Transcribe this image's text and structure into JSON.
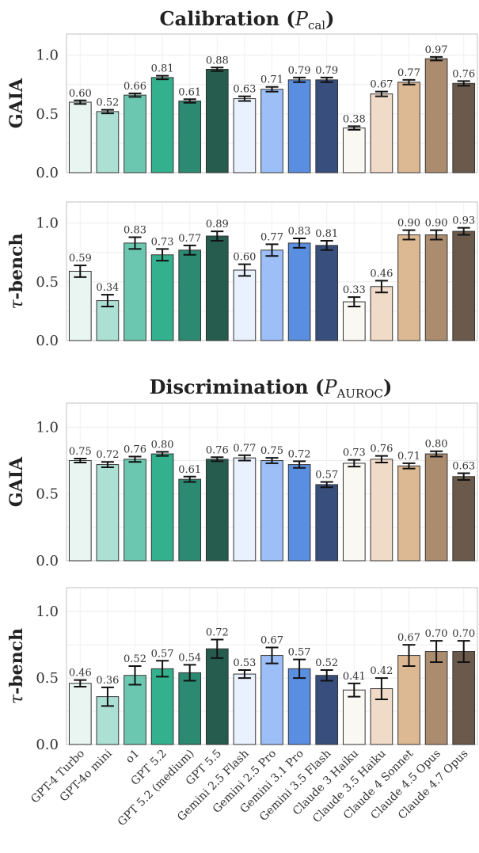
{
  "titles": {
    "calibration": {
      "main": "Calibration (",
      "sym": "P",
      "sub": "cal",
      "close": ")"
    },
    "discrimination": {
      "main": "Discrimination (",
      "sym": "P",
      "sub": "AUROC",
      "close": ")"
    }
  },
  "models": [
    "GPT-4 Turbo",
    "GPT-4o mini",
    "o1",
    "GPT 5.2",
    "GPT 5.2 (medium)",
    "GPT 5.5",
    "Gemini 2.5 Flash",
    "Gemini 2.5 Pro",
    "Gemini 3.1 Pro",
    "Gemini 3.5 Flash",
    "Claude 3 Haiku",
    "Claude 3.5 Haiku",
    "Claude 4 Sonnet",
    "Claude 4.5 Opus",
    "Claude 4.7 Opus"
  ],
  "colors": [
    "#e8f5f0",
    "#ace0d3",
    "#6cc7b1",
    "#33b08e",
    "#2c8a72",
    "#265c4e",
    "#e8f1fd",
    "#9dbff8",
    "#5a8ee0",
    "#384e7d",
    "#faf8f3",
    "#f0dac8",
    "#dcb893",
    "#ac8c6f",
    "#6b5a4b"
  ],
  "chart_data": [
    {
      "type": "bar",
      "section": "Calibration",
      "ylabel": "GAIA",
      "ylim": [
        0,
        1.18
      ],
      "yticks": [
        "0.0",
        "0.5",
        "1.0"
      ],
      "grid": true,
      "values": [
        0.6,
        0.52,
        0.66,
        0.81,
        0.61,
        0.88,
        0.63,
        0.71,
        0.79,
        0.79,
        0.38,
        0.67,
        0.77,
        0.97,
        0.76
      ],
      "labels": [
        "0.60",
        "0.52",
        "0.66",
        "0.81",
        "0.61",
        "0.88",
        "0.63",
        "0.71",
        "0.79",
        "0.79",
        "0.38",
        "0.67",
        "0.77",
        "0.97",
        "0.76"
      ],
      "errors": [
        0.015,
        0.015,
        0.015,
        0.015,
        0.015,
        0.015,
        0.02,
        0.02,
        0.02,
        0.02,
        0.015,
        0.02,
        0.02,
        0.015,
        0.02
      ]
    },
    {
      "type": "bar",
      "section": "Calibration",
      "ylabel": "τ-bench",
      "ylim": [
        0,
        1.18
      ],
      "yticks": [
        "0.0",
        "0.5",
        "1.0"
      ],
      "grid": true,
      "values": [
        0.59,
        0.34,
        0.83,
        0.73,
        0.77,
        0.89,
        0.6,
        0.77,
        0.83,
        0.81,
        0.33,
        0.46,
        0.9,
        0.9,
        0.93
      ],
      "labels": [
        "0.59",
        "0.34",
        "0.83",
        "0.73",
        "0.77",
        "0.89",
        "0.60",
        "0.77",
        "0.83",
        "0.81",
        "0.33",
        "0.46",
        "0.90",
        "0.90",
        "0.93"
      ],
      "errors": [
        0.05,
        0.05,
        0.05,
        0.05,
        0.04,
        0.04,
        0.05,
        0.05,
        0.04,
        0.04,
        0.04,
        0.05,
        0.04,
        0.04,
        0.03
      ]
    },
    {
      "type": "bar",
      "section": "Discrimination",
      "ylabel": "GAIA",
      "ylim": [
        0,
        1.18
      ],
      "yticks": [
        "0.0",
        "0.5",
        "1.0"
      ],
      "grid": true,
      "values": [
        0.75,
        0.72,
        0.76,
        0.8,
        0.61,
        0.76,
        0.77,
        0.75,
        0.72,
        0.57,
        0.73,
        0.76,
        0.71,
        0.8,
        0.63
      ],
      "labels": [
        "0.75",
        "0.72",
        "0.76",
        "0.80",
        "0.61",
        "0.76",
        "0.77",
        "0.75",
        "0.72",
        "0.57",
        "0.73",
        "0.76",
        "0.71",
        "0.80",
        "0.63"
      ],
      "errors": [
        0.015,
        0.02,
        0.02,
        0.015,
        0.02,
        0.015,
        0.02,
        0.02,
        0.025,
        0.02,
        0.025,
        0.025,
        0.02,
        0.02,
        0.025
      ]
    },
    {
      "type": "bar",
      "section": "Discrimination",
      "ylabel": "τ-bench",
      "ylim": [
        0,
        1.18
      ],
      "yticks": [
        "0.0",
        "0.5",
        "1.0"
      ],
      "grid": true,
      "values": [
        0.46,
        0.36,
        0.52,
        0.57,
        0.54,
        0.72,
        0.53,
        0.67,
        0.57,
        0.52,
        0.41,
        0.42,
        0.67,
        0.7,
        0.7
      ],
      "labels": [
        "0.46",
        "0.36",
        "0.52",
        "0.57",
        "0.54",
        "0.72",
        "0.53",
        "0.67",
        "0.57",
        "0.52",
        "0.41",
        "0.42",
        "0.67",
        "0.70",
        "0.70"
      ],
      "errors": [
        0.025,
        0.07,
        0.07,
        0.06,
        0.06,
        0.07,
        0.03,
        0.06,
        0.07,
        0.04,
        0.05,
        0.08,
        0.08,
        0.08,
        0.08
      ]
    }
  ]
}
